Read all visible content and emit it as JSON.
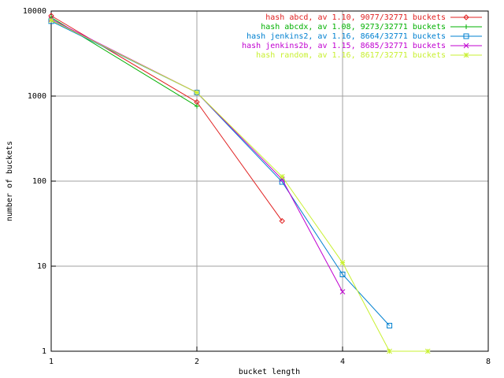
{
  "chart_data": {
    "type": "line",
    "xlabel": "bucket length",
    "ylabel": "number of buckets",
    "xlog": true,
    "ylog": true,
    "grid": true,
    "legend": "top-right",
    "xlim": [
      1,
      8
    ],
    "xticks": [
      1,
      2,
      4,
      8
    ],
    "ylim": [
      1,
      10000
    ],
    "yticks": [
      1,
      10,
      100,
      1000,
      10000
    ],
    "x": [
      1,
      2,
      3,
      4,
      5,
      6
    ],
    "series": [
      {
        "name": "hash abcd, av 1.10, 9077/32771 buckets",
        "color": "#e02020",
        "marker": "diamond",
        "values": [
          8800,
          850,
          34,
          null,
          null,
          null
        ]
      },
      {
        "name": "hash abcdx, av 1.08, 9273/32771 buckets",
        "color": "#00b000",
        "marker": "plus",
        "values": [
          8400,
          760,
          null,
          null,
          null,
          null
        ]
      },
      {
        "name": "hash jenkins2, av 1.16, 8664/32771 buckets",
        "color": "#0080d0",
        "marker": "square",
        "values": [
          7600,
          1100,
          98,
          8,
          2,
          null
        ]
      },
      {
        "name": "hash jenkins2b, av 1.15, 8685/32771 buckets",
        "color": "#c000d0",
        "marker": "cross",
        "values": [
          8000,
          1100,
          105,
          5,
          null,
          null
        ]
      },
      {
        "name": "hash random, av 1.16, 8617/32771 buckets",
        "color": "#c8f030",
        "marker": "star",
        "values": [
          7800,
          1100,
          113,
          11,
          1,
          1
        ]
      }
    ]
  }
}
